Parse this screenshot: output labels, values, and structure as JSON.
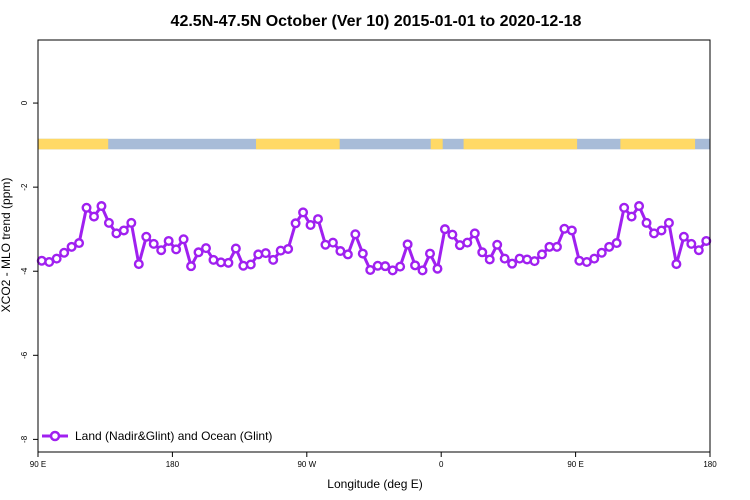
{
  "chart_data": {
    "type": "line",
    "title": "42.5N-47.5N October (Ver 10)   2015-01-01 to 2020-12-18",
    "xlabel": "Longitude (deg E)",
    "ylabel": "XCO2 - MLO trend (ppm)",
    "xlim": [
      90,
      540
    ],
    "ylim": [
      -8.3,
      1.5
    ],
    "x_ticks": [
      {
        "value": 90,
        "label": "90 E"
      },
      {
        "value": 180,
        "label": "180"
      },
      {
        "value": 270,
        "label": "90 W"
      },
      {
        "value": 360,
        "label": "0"
      },
      {
        "value": 450,
        "label": "90 E"
      },
      {
        "value": 540,
        "label": "180"
      }
    ],
    "y_ticks": [
      {
        "value": 0,
        "label": "0"
      },
      {
        "value": -2,
        "label": "-2"
      },
      {
        "value": -4,
        "label": "-4"
      },
      {
        "value": -6,
        "label": "-6"
      },
      {
        "value": -8,
        "label": "-8"
      }
    ],
    "legend": {
      "position": "bottom-left"
    },
    "surface_band": {
      "y_range": [
        -1.1,
        -0.85
      ],
      "land_color": "#ffd966",
      "ocean_color": "#a8bcd8",
      "land_segments": [
        [
          90,
          137
        ],
        [
          236,
          292
        ],
        [
          353,
          361
        ],
        [
          375,
          451
        ],
        [
          480,
          530
        ]
      ]
    },
    "series": [
      {
        "name": "Land (Nadir&Glint) and Ocean (Glint)",
        "color": "#a020f0",
        "x": [
          92.5,
          97.5,
          102.5,
          107.5,
          112.5,
          117.5,
          122.5,
          127.5,
          132.5,
          137.5,
          142.5,
          147.5,
          152.5,
          157.5,
          162.5,
          167.5,
          172.5,
          177.5,
          182.5,
          187.5,
          192.5,
          197.5,
          202.5,
          207.5,
          212.5,
          217.5,
          222.5,
          227.5,
          232.5,
          237.5,
          242.5,
          247.5,
          252.5,
          257.5,
          262.5,
          267.5,
          272.5,
          277.5,
          282.5,
          287.5,
          292.5,
          297.5,
          302.5,
          307.5,
          312.5,
          317.5,
          322.5,
          327.5,
          332.5,
          337.5,
          342.5,
          347.5,
          352.5,
          357.5,
          362.5,
          367.5,
          372.5,
          377.5,
          382.5,
          387.5,
          392.5,
          397.5,
          402.5,
          407.5,
          412.5,
          417.5,
          422.5,
          427.5,
          432.5,
          437.5,
          442.5,
          447.5,
          452.5,
          457.5,
          462.5,
          467.5,
          472.5,
          477.5,
          482.5,
          487.5,
          492.5,
          497.5,
          502.5,
          507.5,
          512.5,
          517.5,
          522.5,
          527.5,
          532.5,
          537.5
        ],
        "y": [
          -3.75,
          -3.78,
          -3.7,
          -3.56,
          -3.42,
          -3.33,
          -2.49,
          -2.7,
          -2.45,
          -2.85,
          -3.1,
          -3.03,
          -2.85,
          -3.83,
          -3.18,
          -3.35,
          -3.5,
          -3.28,
          -3.48,
          -3.24,
          -3.88,
          -3.55,
          -3.45,
          -3.73,
          -3.79,
          -3.8,
          -3.46,
          -3.87,
          -3.84,
          -3.6,
          -3.57,
          -3.73,
          -3.51,
          -3.47,
          -2.86,
          -2.6,
          -2.9,
          -2.76,
          -3.37,
          -3.32,
          -3.52,
          -3.6,
          -3.12,
          -3.58,
          -3.97,
          -3.87,
          -3.88,
          -3.98,
          -3.89,
          -3.36,
          -3.86,
          -3.98,
          -3.58,
          -3.94,
          -3.0,
          -3.13,
          -3.38,
          -3.32,
          -3.1,
          -3.55,
          -3.72,
          -3.37,
          -3.7,
          -3.82,
          -3.7,
          -3.72,
          -3.76,
          -3.6,
          -3.42,
          -3.42,
          -2.99,
          -3.03,
          -3.75,
          -3.78,
          -3.7,
          -3.56,
          -3.42,
          -3.33,
          -2.49,
          -2.7,
          -2.45,
          -2.85,
          -3.1,
          -3.03,
          -2.85,
          -3.83,
          -3.18,
          -3.35,
          -3.5,
          -3.28
        ]
      }
    ]
  }
}
